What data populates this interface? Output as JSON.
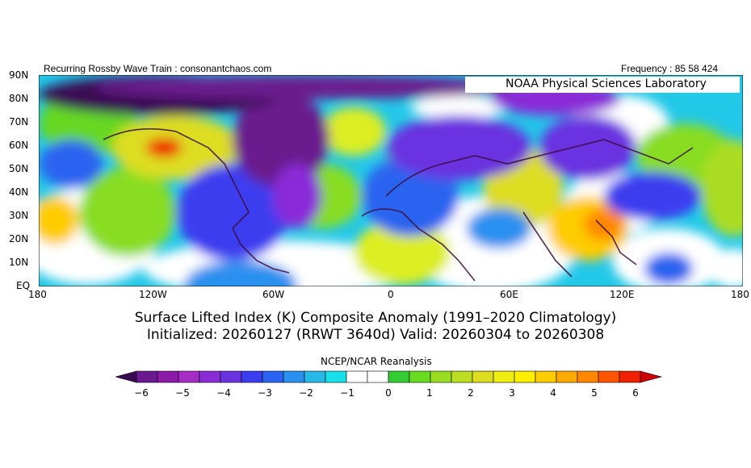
{
  "header": {
    "left": "Recurring Rossby Wave Train : consonantchaos.com",
    "right": "Frequency : 85 58 424",
    "lab": "NOAA Physical Sciences Laboratory"
  },
  "axes": {
    "lat_labels": [
      "90N",
      "80N",
      "70N",
      "60N",
      "50N",
      "40N",
      "30N",
      "20N",
      "10N",
      "EQ"
    ],
    "lon_labels": [
      "180",
      "120W",
      "60W",
      "0",
      "60E",
      "120E",
      "180"
    ]
  },
  "title": {
    "line1": "Surface Lifted Index (K) Composite Anomaly (1991–2020 Climatology)",
    "line2": "Initialized: 20260127 (RRWT 3640d) Valid: 20260304 to 20260308"
  },
  "colorbar": {
    "title": "NCEP/NCAR Reanalysis",
    "tick_labels": [
      "-6",
      "-5",
      "-4",
      "-3",
      "-2",
      "-1",
      "0",
      "1",
      "2",
      "3",
      "4",
      "5",
      "6"
    ],
    "colors": [
      "#3a0a52",
      "#6a1a8e",
      "#8c1aa8",
      "#a52cc4",
      "#8a2bd8",
      "#6a33e0",
      "#3c3cf0",
      "#2a63f0",
      "#2a90f0",
      "#28b8e8",
      "#18e0e8",
      "#ffffff",
      "#ffffff",
      "#33cc33",
      "#66dd22",
      "#99dd22",
      "#bbdd22",
      "#dddd22",
      "#eeee11",
      "#ffee00",
      "#ffcc00",
      "#ffaa00",
      "#ff8800",
      "#ff5500",
      "#ee2200",
      "#cc0000"
    ]
  }
}
